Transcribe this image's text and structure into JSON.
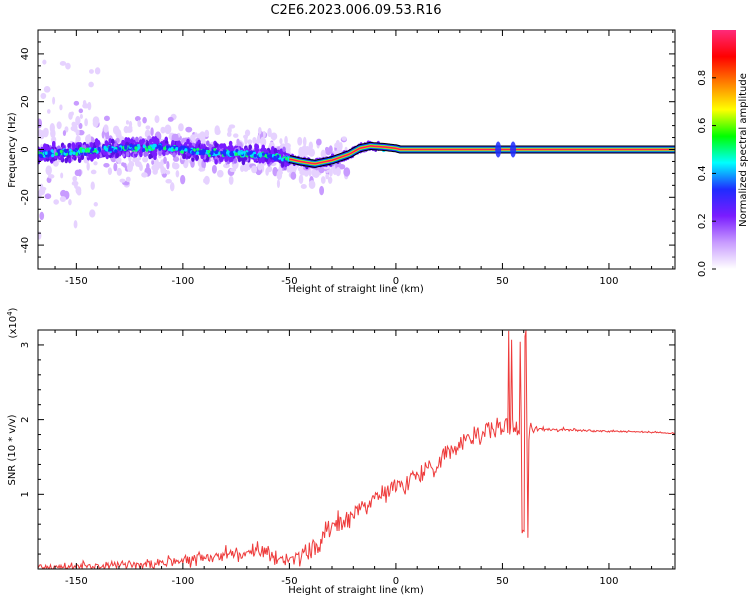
{
  "title": "C2E6.2023.006.09.53.R16",
  "chart_data": [
    {
      "type": "heatmap",
      "name": "spectrogram",
      "xlabel": "Height of straight line (km)",
      "ylabel": "Frequency (Hz)",
      "xlim": [
        -168,
        131
      ],
      "ylim": [
        -50,
        50
      ],
      "xticks": [
        -150,
        -100,
        -50,
        0,
        50,
        100
      ],
      "yticks": [
        -40,
        -20,
        0,
        20,
        40
      ],
      "colorbar": {
        "label": "Normalized spectral amplitude",
        "range": [
          0,
          1
        ],
        "ticks": [
          "0.0",
          "0.2",
          "0.4",
          "0.6",
          "0.8"
        ],
        "colors": [
          "#ffffff",
          "#c89bff",
          "#7a1cff",
          "#1f2cff",
          "#00ffff",
          "#00ff00",
          "#ffff00",
          "#ff8000",
          "#ff0000",
          "#ff2a7a"
        ]
      },
      "carrier_track": [
        {
          "x": -168,
          "f": -2.0
        },
        {
          "x": -150,
          "f": -1.0
        },
        {
          "x": -130,
          "f": 0.5
        },
        {
          "x": -110,
          "f": 1.0
        },
        {
          "x": -90,
          "f": -1.0
        },
        {
          "x": -70,
          "f": -2.0
        },
        {
          "x": -55,
          "f": -3.0
        },
        {
          "x": -45,
          "f": -5.0
        },
        {
          "x": -38,
          "f": -6.0
        },
        {
          "x": -30,
          "f": -4.5
        },
        {
          "x": -22,
          "f": -2.0
        },
        {
          "x": -17,
          "f": 0.5
        },
        {
          "x": -12,
          "f": 1.5
        },
        {
          "x": -5,
          "f": 1.0
        },
        {
          "x": 0,
          "f": 0.5
        },
        {
          "x": 2,
          "f": 0.0
        },
        {
          "x": 131,
          "f": 0.0
        }
      ]
    },
    {
      "type": "line",
      "name": "snr",
      "xlabel": "Height of straight line (km)",
      "ylabel": "SNR (10 * v/v)",
      "scale_label": "(x10",
      "scale_exp": "4",
      "scale_close": ")",
      "xlim": [
        -168,
        131
      ],
      "ylim": [
        0,
        3.2
      ],
      "xticks": [
        -150,
        -100,
        -50,
        0,
        50,
        100
      ],
      "yticks": [
        1,
        2,
        3
      ],
      "line_color": "#ee3b3b",
      "series": [
        {
          "values": [
            {
              "x": -168,
              "y": 0.02
            },
            {
              "x": -140,
              "y": 0.04
            },
            {
              "x": -120,
              "y": 0.07
            },
            {
              "x": -100,
              "y": 0.12
            },
            {
              "x": -80,
              "y": 0.2
            },
            {
              "x": -65,
              "y": 0.22
            },
            {
              "x": -55,
              "y": 0.15
            },
            {
              "x": -45,
              "y": 0.15
            },
            {
              "x": -38,
              "y": 0.3
            },
            {
              "x": -30,
              "y": 0.55
            },
            {
              "x": -20,
              "y": 0.75
            },
            {
              "x": -10,
              "y": 0.95
            },
            {
              "x": 0,
              "y": 1.1
            },
            {
              "x": 10,
              "y": 1.25
            },
            {
              "x": 20,
              "y": 1.45
            },
            {
              "x": 30,
              "y": 1.7
            },
            {
              "x": 40,
              "y": 1.85
            },
            {
              "x": 50,
              "y": 1.9
            },
            {
              "x": 58,
              "y": 1.9
            },
            {
              "x": 65,
              "y": 1.88
            },
            {
              "x": 80,
              "y": 1.86
            },
            {
              "x": 95,
              "y": 1.85
            },
            {
              "x": 110,
              "y": 1.84
            },
            {
              "x": 131,
              "y": 1.82
            }
          ]
        }
      ]
    }
  ]
}
